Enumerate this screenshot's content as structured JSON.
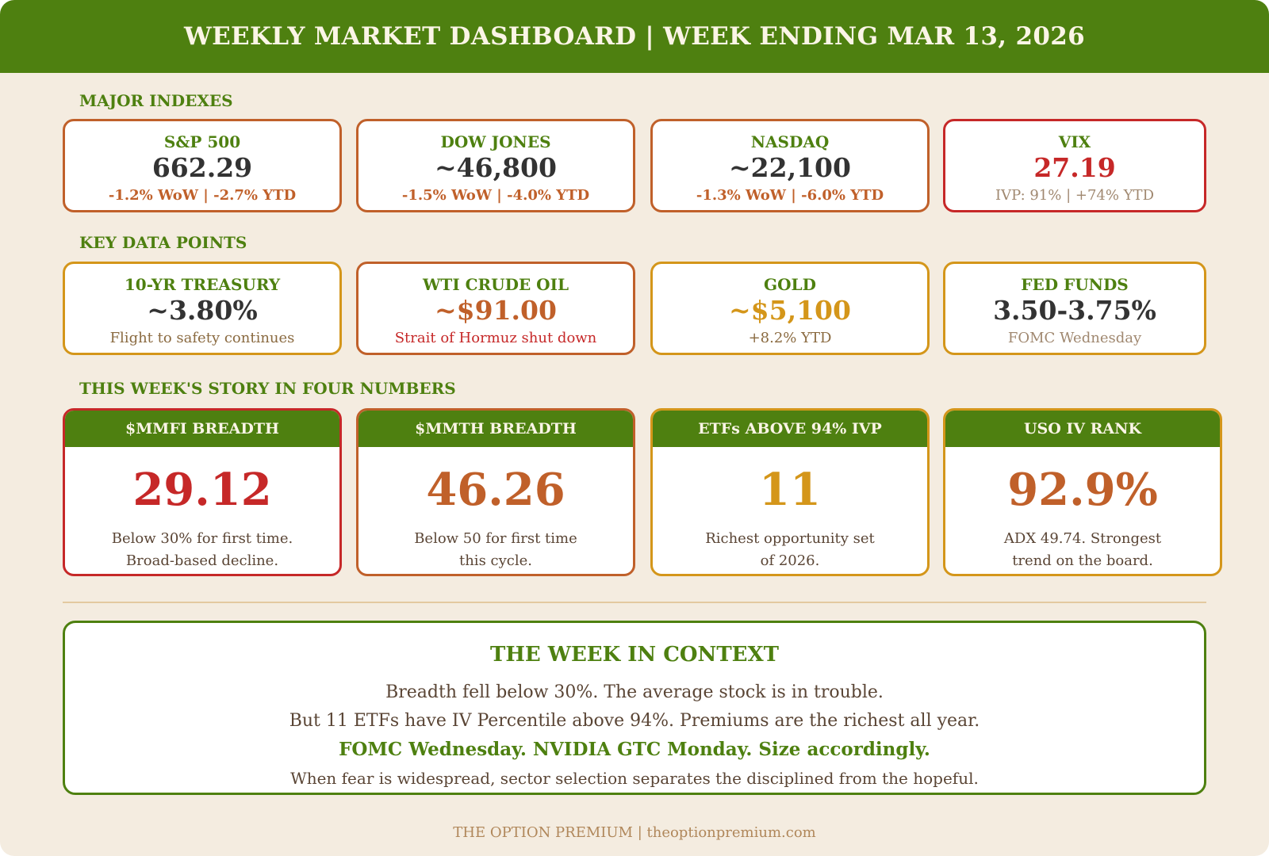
{
  "header": {
    "title": "WEEKLY MARKET DASHBOARD | WEEK ENDING MAR 13, 2026"
  },
  "sections": {
    "indexes": "MAJOR INDEXES",
    "data_points": "KEY DATA POINTS",
    "story": "THIS WEEK'S STORY IN FOUR NUMBERS"
  },
  "indexes": [
    {
      "title": "S&P 500",
      "value": "662.29",
      "sub": "-1.2% WoW | -2.7% YTD"
    },
    {
      "title": "DOW JONES",
      "value": "~46,800",
      "sub": "-1.5% WoW | -4.0% YTD"
    },
    {
      "title": "NASDAQ",
      "value": "~22,100",
      "sub": "-1.3% WoW | -6.0% YTD"
    },
    {
      "title": "VIX",
      "value": "27.19",
      "sub": "IVP: 91% | +74% YTD"
    }
  ],
  "data_points": [
    {
      "title": "10-YR TREASURY",
      "value": "~3.80%",
      "sub": "Flight to safety continues"
    },
    {
      "title": "WTI CRUDE OIL",
      "value": "~$91.00",
      "sub": "Strait of Hormuz shut down"
    },
    {
      "title": "GOLD",
      "value": "~$5,100",
      "sub": "+8.2% YTD"
    },
    {
      "title": "FED FUNDS",
      "value": "3.50-3.75%",
      "sub": "FOMC Wednesday"
    }
  ],
  "story": [
    {
      "title": "$MMFI BREADTH",
      "value": "29.12",
      "line1": "Below 30% for first time.",
      "line2": "Broad-based decline."
    },
    {
      "title": "$MMTH BREADTH",
      "value": "46.26",
      "line1": "Below 50 for first time",
      "line2": "this cycle."
    },
    {
      "title": "ETFs ABOVE 94% IVP",
      "value": "11",
      "line1": "Richest opportunity set",
      "line2": "of 2026."
    },
    {
      "title": "USO IV RANK",
      "value": "92.9%",
      "line1": "ADX 49.74. Strongest",
      "line2": "trend on the board."
    }
  ],
  "context": {
    "title": "THE WEEK IN CONTEXT",
    "line1": "Breadth fell below 30%. The average stock is in trouble.",
    "line2": "But 11 ETFs have IV Percentile above 94%. Premiums are the richest all year.",
    "line3": "FOMC Wednesday. NVIDIA GTC Monday. Size accordingly.",
    "line4": "When fear is widespread, sector selection separates the disciplined from the hopeful."
  },
  "footer": {
    "text": "THE OPTION PREMIUM | theoptionpremium.com"
  },
  "colors": {
    "green": "#4e8010",
    "orange": "#c0602a",
    "red": "#c62828",
    "gold": "#d4961a",
    "dark": "#333333",
    "background": "#f4ece0"
  }
}
